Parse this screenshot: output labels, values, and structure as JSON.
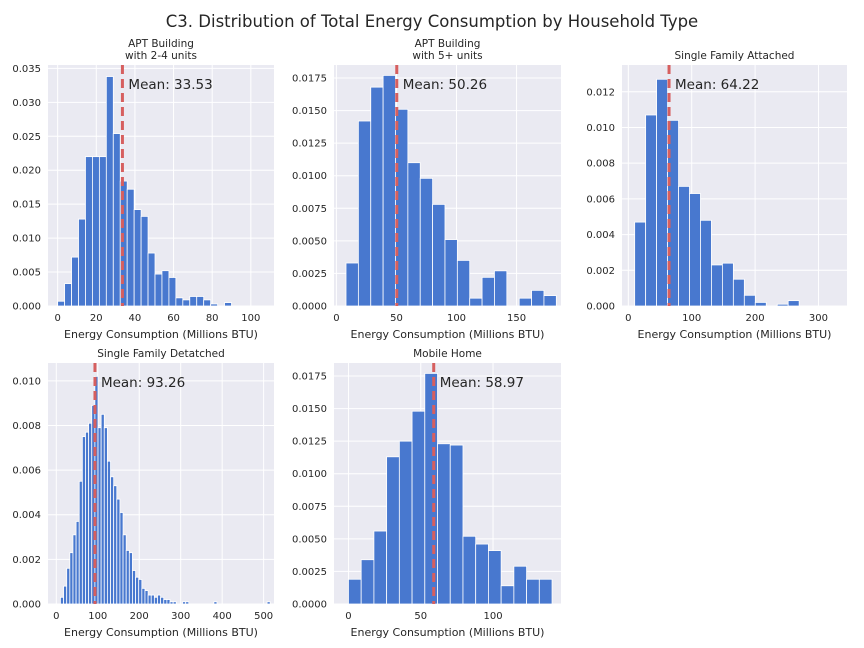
{
  "figure": {
    "title": "C3. Distribution of Total Energy Consumption by Household Type",
    "style": {
      "background": "#ffffff",
      "axes_background": "#eaeaf2",
      "grid_color": "#ffffff",
      "bar_color": "#4878cf",
      "bar_edge": "#ffffff",
      "mean_line_color": "#d65f5f",
      "text_color": "#262626"
    }
  },
  "chart_data": [
    {
      "type": "bar",
      "title_lines": [
        "APT Building",
        "with 2-4 units"
      ],
      "xlabel": "Energy Consumption (Millions BTU)",
      "ylabel": "",
      "xlim": [
        -5,
        112
      ],
      "ylim": [
        0,
        0.0355
      ],
      "xticks": [
        0,
        20,
        40,
        60,
        80,
        100
      ],
      "yticks": [
        0.0,
        0.005,
        0.01,
        0.015,
        0.02,
        0.025,
        0.03,
        0.035
      ],
      "ytick_labels": [
        "0.000",
        "0.005",
        "0.010",
        "0.015",
        "0.020",
        "0.025",
        "0.030",
        "0.035"
      ],
      "bins": {
        "start": 0,
        "width": 3.6
      },
      "values": [
        0.0007,
        0.0033,
        0.0072,
        0.0128,
        0.022,
        0.022,
        0.022,
        0.0338,
        0.0254,
        0.0184,
        0.0172,
        0.0142,
        0.0132,
        0.0078,
        0.0047,
        0.0052,
        0.0042,
        0.0012,
        0.0009,
        0.0014,
        0.0014,
        0.0009,
        0.0003,
        0.0,
        0.0005
      ],
      "grid": true,
      "mean": 33.53,
      "mean_label": "Mean: 33.53"
    },
    {
      "type": "bar",
      "title_lines": [
        "APT Building",
        "with 5+ units"
      ],
      "xlabel": "Energy Consumption (Millions BTU)",
      "ylabel": "",
      "xlim": [
        -2,
        187
      ],
      "ylim": [
        0,
        0.0185
      ],
      "xticks": [
        0,
        50,
        100,
        150
      ],
      "yticks": [
        0.0,
        0.0025,
        0.005,
        0.0075,
        0.01,
        0.0125,
        0.015,
        0.0175
      ],
      "ytick_labels": [
        "0.0000",
        "0.0025",
        "0.0050",
        "0.0075",
        "0.0100",
        "0.0125",
        "0.0150",
        "0.0175"
      ],
      "bins": {
        "start": 8,
        "width": 10.3
      },
      "values": [
        0.0033,
        0.0142,
        0.0168,
        0.0177,
        0.0151,
        0.011,
        0.0098,
        0.0078,
        0.0051,
        0.0035,
        0.0006,
        0.0022,
        0.0027,
        0.0,
        0.0006,
        0.0012,
        0.0008
      ],
      "grid": true,
      "mean": 50.26,
      "mean_label": "Mean: 50.26"
    },
    {
      "type": "bar",
      "title_lines": [
        "Single Family Attached"
      ],
      "xlabel": "Energy Consumption (Millions BTU)",
      "ylabel": "",
      "xlim": [
        -10,
        345
      ],
      "ylim": [
        0,
        0.0135
      ],
      "xticks": [
        0,
        100,
        200,
        300
      ],
      "yticks": [
        0.0,
        0.002,
        0.004,
        0.006,
        0.008,
        0.01,
        0.012
      ],
      "ytick_labels": [
        "0.000",
        "0.002",
        "0.004",
        "0.006",
        "0.008",
        "0.010",
        "0.012"
      ],
      "bins": {
        "start": 10,
        "width": 17.3
      },
      "values": [
        0.0047,
        0.0107,
        0.0127,
        0.0104,
        0.0067,
        0.0063,
        0.0048,
        0.0023,
        0.0024,
        0.0015,
        0.0006,
        0.0002,
        0.0,
        0.0001,
        0.0003,
        0.0,
        0.0,
        0.0,
        0.0,
        0.0,
        0.0,
        0.0,
        0.0001
      ],
      "grid": true,
      "mean": 64.22,
      "mean_label": "Mean: 64.22"
    },
    {
      "type": "bar",
      "title_lines": [
        "Single Family Detatched"
      ],
      "xlabel": "Energy Consumption (Millions BTU)",
      "ylabel": "",
      "xlim": [
        -20,
        525
      ],
      "ylim": [
        0,
        0.0108
      ],
      "xticks": [
        0,
        100,
        200,
        300,
        400,
        500
      ],
      "yticks": [
        0.0,
        0.002,
        0.004,
        0.006,
        0.008,
        0.01
      ],
      "ytick_labels": [
        "0.000",
        "0.002",
        "0.004",
        "0.006",
        "0.008",
        "0.010"
      ],
      "bins": {
        "start": 10,
        "width": 7.55
      },
      "values": [
        0.0003,
        0.0008,
        0.0016,
        0.0023,
        0.0031,
        0.0037,
        0.0055,
        0.0075,
        0.0077,
        0.0081,
        0.0089,
        0.0102,
        0.0079,
        0.0085,
        0.0079,
        0.0064,
        0.0057,
        0.0053,
        0.0047,
        0.0041,
        0.0031,
        0.0024,
        0.0023,
        0.0015,
        0.0012,
        0.0011,
        0.0007,
        0.0006,
        0.0004,
        0.0004,
        0.0003,
        0.0004,
        0.0003,
        0.0002,
        0.0002,
        0.0001,
        0.0001,
        0.0,
        0.0,
        0.0001,
        0.0001,
        0.0,
        0.0,
        0.0,
        0.0,
        0.0,
        0.0,
        0.0,
        0.0,
        0.0001,
        0.0,
        0.0,
        0.0,
        0.0,
        0.0,
        0.0,
        0.0,
        0.0,
        0.0,
        0.0,
        0.0,
        0.0,
        0.0,
        0.0,
        0.0,
        0.0,
        0.0001
      ],
      "grid": true,
      "mean": 93.26,
      "mean_label": "Mean: 93.26"
    },
    {
      "type": "bar",
      "title_lines": [
        "Mobile Home"
      ],
      "xlabel": "Energy Consumption (Millions BTU)",
      "ylabel": "",
      "xlim": [
        -10,
        147
      ],
      "ylim": [
        0,
        0.0185
      ],
      "xticks": [
        0,
        50,
        100
      ],
      "yticks": [
        0.0,
        0.0025,
        0.005,
        0.0075,
        0.01,
        0.0125,
        0.015,
        0.0175
      ],
      "ytick_labels": [
        "0.0000",
        "0.0025",
        "0.0050",
        "0.0075",
        "0.0100",
        "0.0125",
        "0.0150",
        "0.0175"
      ],
      "bins": {
        "start": 0,
        "width": 8.8
      },
      "values": [
        0.0019,
        0.0034,
        0.0056,
        0.0113,
        0.0125,
        0.0148,
        0.0177,
        0.0123,
        0.0122,
        0.0052,
        0.0046,
        0.0041,
        0.0014,
        0.0029,
        0.0019,
        0.0019
      ],
      "grid": true,
      "mean": 58.97,
      "mean_label": "Mean: 58.97"
    }
  ]
}
